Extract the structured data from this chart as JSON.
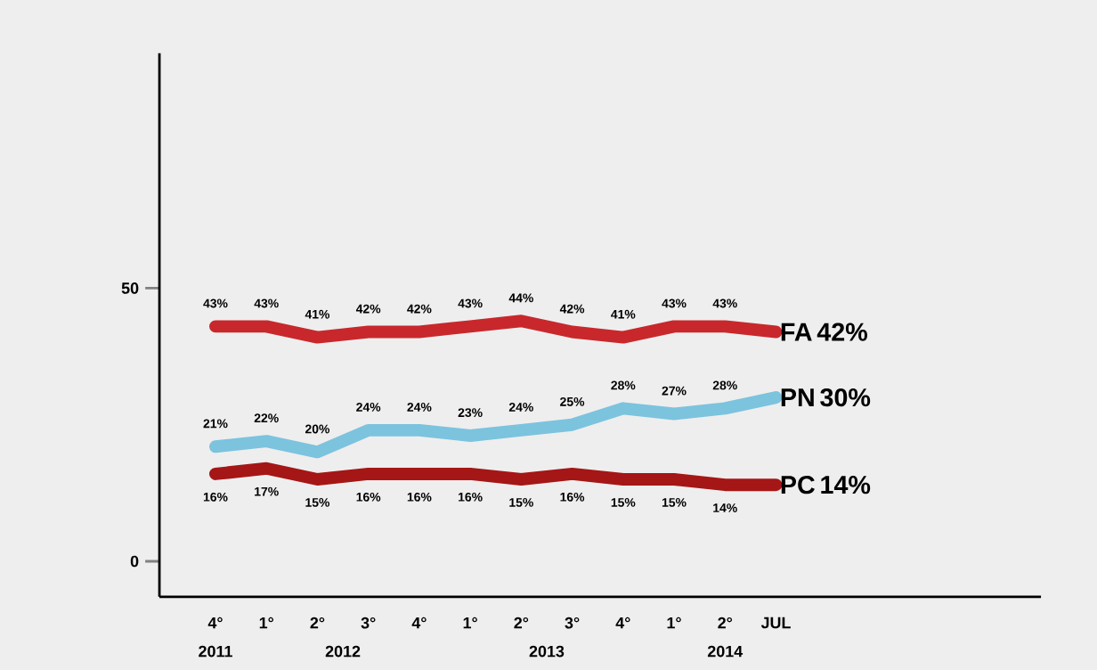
{
  "chart_data": {
    "type": "line",
    "categories": [
      "4°",
      "1°",
      "2°",
      "3°",
      "4°",
      "1°",
      "2°",
      "3°",
      "4°",
      "1°",
      "2°",
      "JUL"
    ],
    "series": [
      {
        "name": "FA",
        "color": "#c8282c",
        "values": [
          43,
          43,
          41,
          42,
          42,
          43,
          44,
          42,
          41,
          43,
          43,
          42
        ],
        "value_labels": [
          "43%",
          "43%",
          "41%",
          "42%",
          "42%",
          "43%",
          "44%",
          "42%",
          "41%",
          "43%",
          "43%",
          "42%"
        ]
      },
      {
        "name": "PN",
        "color": "#7cc3de",
        "values": [
          21,
          22,
          20,
          24,
          24,
          23,
          24,
          25,
          28,
          27,
          28,
          30
        ],
        "value_labels": [
          "21%",
          "22%",
          "20%",
          "24%",
          "24%",
          "23%",
          "24%",
          "25%",
          "28%",
          "27%",
          "28%",
          "30%"
        ]
      },
      {
        "name": "PC",
        "color": "#a51616",
        "values": [
          16,
          17,
          15,
          16,
          16,
          16,
          15,
          16,
          15,
          15,
          14,
          14
        ],
        "value_labels": [
          "16%",
          "17%",
          "15%",
          "16%",
          "16%",
          "16%",
          "15%",
          "16%",
          "15%",
          "15%",
          "14%",
          "14%"
        ]
      }
    ],
    "annotations": [
      "2011",
      "2012",
      "2013",
      "2014"
    ],
    "ylim": [
      -6.5,
      93
    ],
    "yticks": [
      0,
      50
    ],
    "line_style": "solid"
  }
}
